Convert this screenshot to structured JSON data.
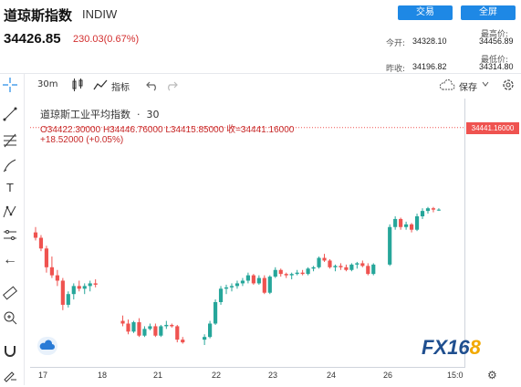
{
  "header": {
    "title": "道琼斯指数",
    "code": "INDIW",
    "trade_button": "交易",
    "fullscreen_button": "全屏",
    "price": "34426.85",
    "change": "230.03(0.67%)"
  },
  "stats": {
    "open_label": "今开:",
    "open_value": "34328.10",
    "high_label": "最高价:",
    "high_value": "34456.89",
    "prev_close_label": "昨收:",
    "prev_close_value": "34196.82",
    "low_label": "最低价:",
    "low_value": "34314.80"
  },
  "toolbar": {
    "interval": "30m",
    "indicators_label": "指标",
    "save_label": "保存"
  },
  "legend": {
    "name": "道琼斯工业平均指数",
    "interval": "30",
    "ohlc": "O34422.30000  H34446.76000  L34415.85000  收=34441.16000",
    "change": "+18.52000 (+0.05%)"
  },
  "price_axis": {
    "last_price_tag": "34441.16000"
  },
  "time_axis": {
    "ticks": [
      "17",
      "18",
      "21",
      "22",
      "23",
      "24",
      "26",
      "15:0"
    ]
  },
  "logo": {
    "text": "FX16",
    "accent": "8"
  },
  "colors": {
    "up": "#26a69a",
    "down": "#ef5350",
    "accent": "#1e88e5"
  },
  "chart_data": {
    "type": "candlestick",
    "y_unit": "index points",
    "last_price": 34441.16,
    "x_ticks": [
      "17",
      "18",
      "21",
      "22",
      "23",
      "24",
      "26",
      "15:0"
    ],
    "candles": [
      [
        34050,
        34070,
        34020,
        34030
      ],
      [
        34030,
        34040,
        33980,
        33990
      ],
      [
        33990,
        34000,
        33900,
        33920
      ],
      [
        33920,
        33960,
        33880,
        33890
      ],
      [
        33890,
        33910,
        33850,
        33870
      ],
      [
        33870,
        33880,
        33760,
        33780
      ],
      [
        33780,
        33830,
        33770,
        33820
      ],
      [
        33820,
        33860,
        33800,
        33850
      ],
      [
        33850,
        33870,
        33830,
        33840
      ],
      [
        33840,
        33860,
        33820,
        33850
      ],
      [
        33850,
        33870,
        33830,
        33860
      ],
      [
        33860,
        33875,
        33845,
        33855
      ],
      [
        33720,
        33740,
        33700,
        33710
      ],
      [
        33710,
        33725,
        33670,
        33680
      ],
      [
        33680,
        33720,
        33675,
        33715
      ],
      [
        33715,
        33730,
        33660,
        33665
      ],
      [
        33665,
        33700,
        33660,
        33690
      ],
      [
        33690,
        33710,
        33685,
        33700
      ],
      [
        33700,
        33710,
        33660,
        33665
      ],
      [
        33665,
        33705,
        33660,
        33700
      ],
      [
        33700,
        33720,
        33690,
        33705
      ],
      [
        33705,
        33710,
        33695,
        33700
      ],
      [
        33700,
        33705,
        33640,
        33650
      ],
      [
        33650,
        33660,
        33635,
        33640
      ],
      [
        33650,
        33670,
        33630,
        33660
      ],
      [
        33660,
        33720,
        33655,
        33710
      ],
      [
        33710,
        33800,
        33705,
        33790
      ],
      [
        33790,
        33850,
        33780,
        33840
      ],
      [
        33840,
        33855,
        33820,
        33845
      ],
      [
        33845,
        33860,
        33830,
        33850
      ],
      [
        33850,
        33870,
        33840,
        33860
      ],
      [
        33860,
        33880,
        33850,
        33870
      ],
      [
        33870,
        33900,
        33860,
        33890
      ],
      [
        33890,
        33895,
        33855,
        33860
      ],
      [
        33860,
        33890,
        33855,
        33880
      ],
      [
        33880,
        33890,
        33820,
        33825
      ],
      [
        33825,
        33890,
        33820,
        33885
      ],
      [
        33885,
        33920,
        33880,
        33910
      ],
      [
        33910,
        33915,
        33885,
        33895
      ],
      [
        33895,
        33900,
        33880,
        33890
      ],
      [
        33890,
        33900,
        33875,
        33895
      ],
      [
        33895,
        33910,
        33890,
        33900
      ],
      [
        33900,
        33910,
        33890,
        33895
      ],
      [
        33895,
        33920,
        33890,
        33915
      ],
      [
        33915,
        33925,
        33905,
        33920
      ],
      [
        33920,
        33960,
        33915,
        33955
      ],
      [
        33955,
        33970,
        33940,
        33945
      ],
      [
        33945,
        33950,
        33915,
        33920
      ],
      [
        33920,
        33930,
        33905,
        33925
      ],
      [
        33925,
        33935,
        33910,
        33920
      ],
      [
        33920,
        33930,
        33905,
        33910
      ],
      [
        33910,
        33935,
        33905,
        33930
      ],
      [
        33930,
        33940,
        33915,
        33935
      ],
      [
        33935,
        33945,
        33920,
        33925
      ],
      [
        33925,
        33935,
        33890,
        33895
      ],
      [
        33895,
        33935,
        33890,
        33930
      ],
      [
        33930,
        34080,
        33925,
        34070
      ],
      [
        34070,
        34110,
        34060,
        34100
      ],
      [
        34100,
        34105,
        34060,
        34070
      ],
      [
        34070,
        34090,
        34060,
        34080
      ],
      [
        34080,
        34085,
        34050,
        34060
      ],
      [
        34060,
        34120,
        34055,
        34110
      ],
      [
        34110,
        34140,
        34100,
        34130
      ],
      [
        34130,
        34145,
        34120,
        34140
      ],
      [
        34140,
        34145,
        34125,
        34135
      ],
      [
        34135,
        34140,
        34130,
        34135
      ],
      [
        34260,
        34330,
        34255,
        34320
      ],
      [
        34320,
        34380,
        34315,
        34360
      ],
      [
        34360,
        34420,
        34355,
        34410
      ],
      [
        34410,
        34440,
        34405,
        34435
      ],
      [
        34435,
        34445,
        34415,
        34425
      ],
      [
        34425,
        34447,
        34416,
        34441
      ]
    ]
  }
}
